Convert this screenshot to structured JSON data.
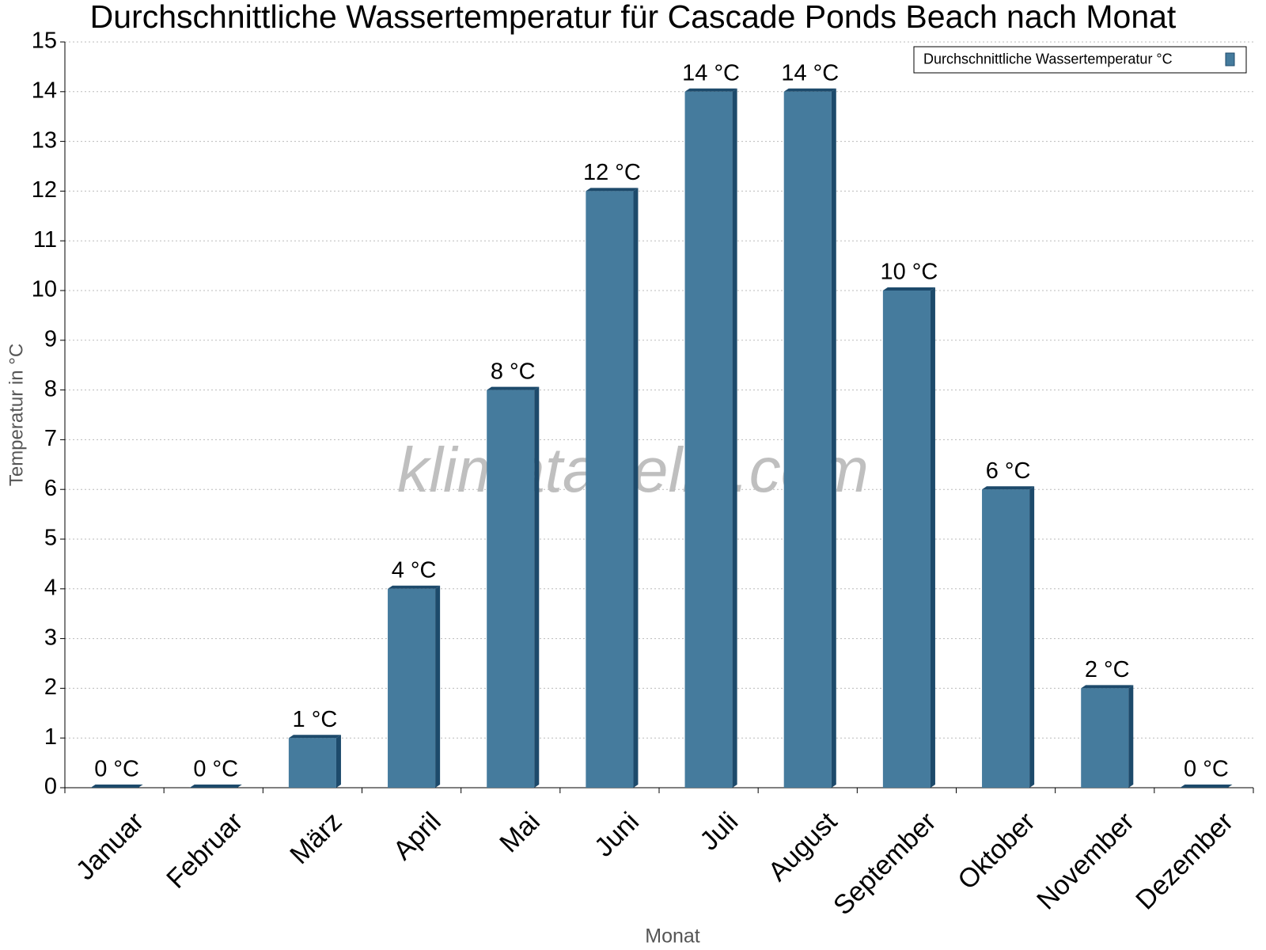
{
  "chart_data": {
    "type": "bar",
    "title": "Durchschnittliche Wassertemperatur für Cascade Ponds Beach nach Monat",
    "x_label": "Monat",
    "y_label": "Temperatur in °C",
    "watermark": "klimatabelle.com",
    "categories": [
      "Januar",
      "Februar",
      "März",
      "April",
      "Mai",
      "Juni",
      "Juli",
      "August",
      "September",
      "Oktober",
      "November",
      "Dezember"
    ],
    "series": [
      {
        "name": "Durchschnittliche Wassertemperatur °C",
        "color": "#457b9d",
        "values": [
          0,
          0,
          1,
          4,
          8,
          12,
          14,
          14,
          10,
          6,
          2,
          0
        ],
        "value_labels": [
          "0 °C",
          "0 °C",
          "1 °C",
          "4 °C",
          "8 °C",
          "12 °C",
          "14 °C",
          "14 °C",
          "10 °C",
          "6 °C",
          "2 °C",
          "0 °C"
        ]
      }
    ],
    "ylim": [
      0,
      15
    ],
    "yticks": [
      0,
      1,
      2,
      3,
      4,
      5,
      6,
      7,
      8,
      9,
      10,
      11,
      12,
      13,
      14,
      15
    ],
    "grid": true,
    "legend": "top-right"
  }
}
